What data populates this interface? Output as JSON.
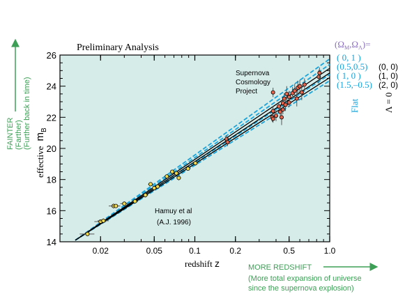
{
  "chart_data": {
    "type": "scatter",
    "title": "Preliminary Analysis",
    "xlabel_prefix": "redshift",
    "xlabel_symbol": "z",
    "ylabel_prefix": "effective",
    "ylabel_symbol": "m",
    "ylabel_sub": "B",
    "x_scale": "log",
    "xlim": [
      0.01,
      1.0
    ],
    "ylim": [
      14,
      26
    ],
    "x_ticks": [
      {
        "v": 0.02,
        "label": "0.02"
      },
      {
        "v": 0.05,
        "label": "0.05"
      },
      {
        "v": 0.1,
        "label": "0.1"
      },
      {
        "v": 0.2,
        "label": "0.2"
      },
      {
        "v": 0.5,
        "label": "0.5"
      },
      {
        "v": 1.0,
        "label": "1.0"
      }
    ],
    "y_ticks": [
      {
        "v": 14,
        "label": "14"
      },
      {
        "v": 16,
        "label": "16"
      },
      {
        "v": 18,
        "label": "18"
      },
      {
        "v": 20,
        "label": "20"
      },
      {
        "v": 22,
        "label": "22"
      },
      {
        "v": 24,
        "label": "24"
      },
      {
        "v": 26,
        "label": "26"
      }
    ],
    "annotations": {
      "scp": [
        "Supernova",
        "Cosmology",
        "Project"
      ],
      "hamuy": [
        "Hamuy et al",
        "(A.J. 1996)"
      ]
    },
    "legend": {
      "header": "(Ω",
      "header_full": "(ΩM,ΩΛ) =",
      "rows": [
        {
          "left": "( 0,   1 )",
          "right": ""
        },
        {
          "left": "(0.5,0.5)",
          "right": "(0, 0)"
        },
        {
          "left": "( 1,   0 )",
          "right": "(1, 0)"
        },
        {
          "left": "(1.5,–0.5)",
          "right": "(2, 0)"
        }
      ],
      "flat_label": "Flat",
      "lambda_label": "Λ = 0"
    },
    "side_notes": {
      "fainter": "FAINTER",
      "farther": "(Farther)",
      "further_back": "(Further back in time)",
      "more_redshift": "MORE REDSHIFT",
      "expansion_1": "(More total expansion of universe",
      "expansion_2": "since the supernova explosion)"
    },
    "curves": [
      {
        "name": "( 0,   1 )",
        "style": "dashed",
        "color": "#1aa3d9",
        "x": [
          0.013,
          1.0
        ],
        "y": [
          14.1,
          25.75
        ]
      },
      {
        "name": "(0.5,0.5)",
        "style": "dashed",
        "color": "#1aa3d9",
        "x": [
          0.013,
          1.0
        ],
        "y": [
          14.1,
          25.4
        ]
      },
      {
        "name": "( 1,   0 )",
        "style": "dashed",
        "color": "#1aa3d9",
        "x": [
          0.013,
          1.0
        ],
        "y": [
          14.1,
          24.75
        ]
      },
      {
        "name": "(1.5,–0.5)",
        "style": "dashed",
        "color": "#1aa3d9",
        "x": [
          0.013,
          1.0
        ],
        "y": [
          14.1,
          24.35
        ]
      },
      {
        "name": "(0, 0)",
        "style": "solid",
        "color": "#000000",
        "x": [
          0.013,
          1.0
        ],
        "y": [
          14.1,
          25.15
        ]
      },
      {
        "name": "(1, 0)",
        "style": "solid",
        "color": "#000000",
        "x": [
          0.013,
          1.0
        ],
        "y": [
          14.1,
          24.85
        ]
      },
      {
        "name": "(2, 0)",
        "style": "solid",
        "color": "#000000",
        "x": [
          0.013,
          1.0
        ],
        "y": [
          14.1,
          24.55
        ]
      }
    ],
    "series": [
      {
        "group": "Hamuy et al",
        "color": "#f2d94a",
        "points": [
          {
            "x": 0.016,
            "y": 14.5,
            "xerr": 0.002,
            "yerr": 0.1
          },
          {
            "x": 0.02,
            "y": 15.3,
            "xerr": 0.002,
            "yerr": 0.1
          },
          {
            "x": 0.021,
            "y": 15.35,
            "xerr": 0.002,
            "yerr": 0.15
          },
          {
            "x": 0.025,
            "y": 16.3,
            "xerr": 0.002,
            "yerr": 0.15
          },
          {
            "x": 0.026,
            "y": 16.3,
            "xerr": 0.002,
            "yerr": 0.1
          },
          {
            "x": 0.03,
            "y": 16.45,
            "xerr": 0.002,
            "yerr": 0.1
          },
          {
            "x": 0.036,
            "y": 16.6,
            "xerr": 0.002,
            "yerr": 0.1
          },
          {
            "x": 0.043,
            "y": 17.0,
            "xerr": 0.002,
            "yerr": 0.15
          },
          {
            "x": 0.047,
            "y": 17.7,
            "xerr": 0.002,
            "yerr": 0.1
          },
          {
            "x": 0.05,
            "y": 17.45,
            "xerr": 0.002,
            "yerr": 0.1
          },
          {
            "x": 0.053,
            "y": 17.55,
            "xerr": 0.002,
            "yerr": 0.1
          },
          {
            "x": 0.062,
            "y": 18.2,
            "xerr": 0.002,
            "yerr": 0.1
          },
          {
            "x": 0.068,
            "y": 18.5,
            "xerr": 0.002,
            "yerr": 0.1
          },
          {
            "x": 0.073,
            "y": 18.4,
            "xerr": 0.002,
            "yerr": 0.1
          },
          {
            "x": 0.076,
            "y": 18.1,
            "xerr": 0.002,
            "yerr": 0.15
          },
          {
            "x": 0.089,
            "y": 18.7,
            "xerr": 0.002,
            "yerr": 0.1
          },
          {
            "x": 0.101,
            "y": 19.05,
            "xerr": 0.002,
            "yerr": 0.1
          }
        ]
      },
      {
        "group": "Supernova Cosmology Project",
        "color": "#e8654d",
        "points": [
          {
            "x": 0.172,
            "y": 20.6,
            "yerr": 0.25
          },
          {
            "x": 0.175,
            "y": 20.4,
            "yerr": 0.25
          },
          {
            "x": 0.375,
            "y": 22.0,
            "yerr": 0.3
          },
          {
            "x": 0.38,
            "y": 22.4,
            "yerr": 0.3
          },
          {
            "x": 0.38,
            "y": 21.9,
            "yerr": 0.25
          },
          {
            "x": 0.38,
            "y": 23.6,
            "yerr": 0.3
          },
          {
            "x": 0.4,
            "y": 22.1,
            "yerr": 0.35
          },
          {
            "x": 0.42,
            "y": 22.7,
            "yerr": 0.3
          },
          {
            "x": 0.43,
            "y": 22.35,
            "yerr": 0.35
          },
          {
            "x": 0.44,
            "y": 22.0,
            "yerr": 0.5
          },
          {
            "x": 0.45,
            "y": 22.5,
            "yerr": 0.3
          },
          {
            "x": 0.45,
            "y": 22.9,
            "yerr": 0.4
          },
          {
            "x": 0.46,
            "y": 23.2,
            "yerr": 0.35
          },
          {
            "x": 0.47,
            "y": 22.8,
            "yerr": 0.4
          },
          {
            "x": 0.48,
            "y": 23.5,
            "yerr": 0.5
          },
          {
            "x": 0.5,
            "y": 23.3,
            "yerr": 0.4
          },
          {
            "x": 0.5,
            "y": 22.95,
            "yerr": 0.3
          },
          {
            "x": 0.53,
            "y": 23.55,
            "yerr": 0.4
          },
          {
            "x": 0.55,
            "y": 23.7,
            "yerr": 0.45
          },
          {
            "x": 0.57,
            "y": 23.2,
            "yerr": 0.5
          },
          {
            "x": 0.58,
            "y": 23.9,
            "yerr": 0.45
          },
          {
            "x": 0.6,
            "y": 24.0,
            "yerr": 0.4
          },
          {
            "x": 0.62,
            "y": 23.6,
            "yerr": 0.5
          },
          {
            "x": 0.65,
            "y": 24.1,
            "yerr": 0.4
          },
          {
            "x": 0.83,
            "y": 24.6,
            "yerr": 0.45
          },
          {
            "x": 0.84,
            "y": 24.85,
            "yerr": 0.35
          }
        ]
      }
    ]
  },
  "colors": {
    "plot_bg": "#d6ece9",
    "green_text": "#3c9f55",
    "cyan_text": "#1aa3d9",
    "purple_text": "#8a6fbf"
  }
}
